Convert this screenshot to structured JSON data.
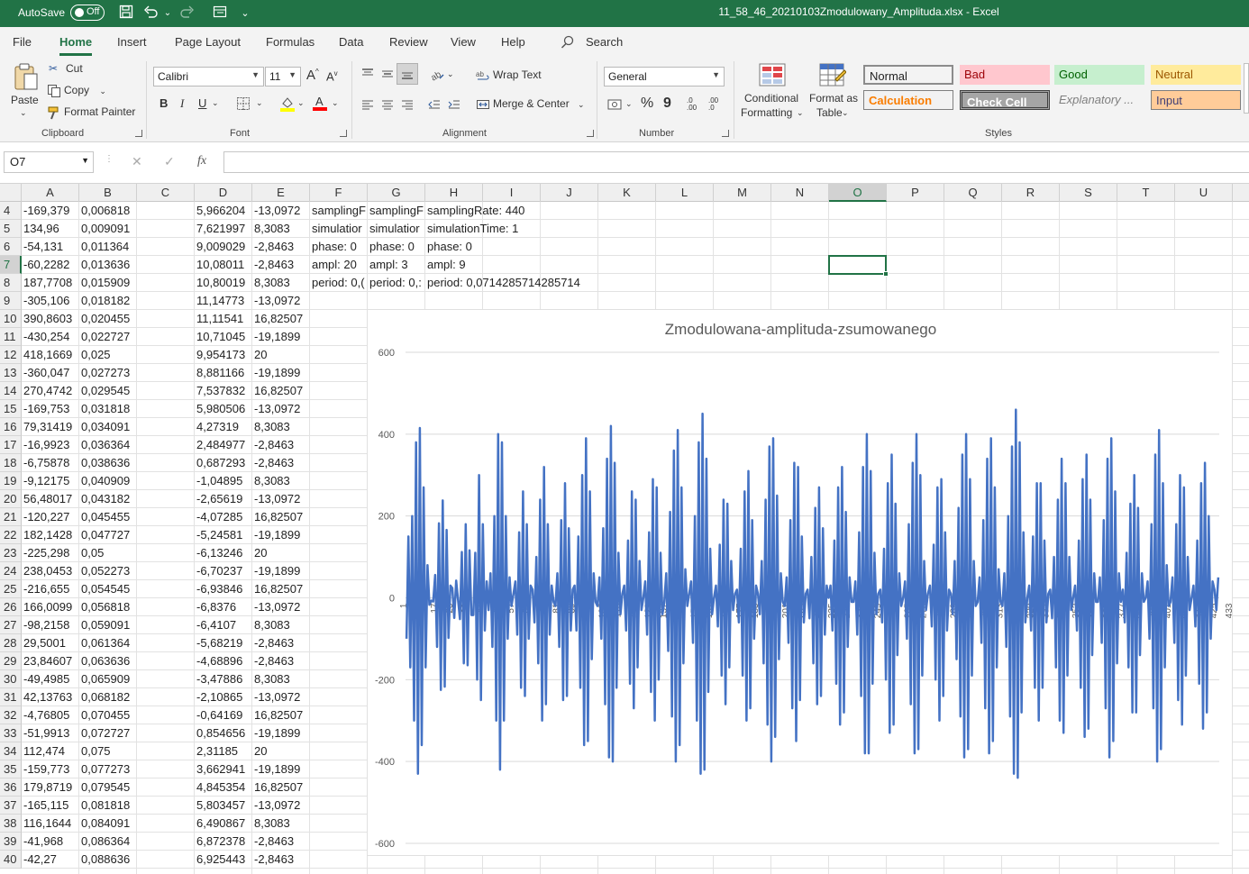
{
  "titlebar": {
    "autosave_label": "AutoSave",
    "autosave_state": "Off",
    "document_title": "11_58_46_20210103Zmodulowany_Amplituda.xlsx  -  Excel"
  },
  "menu": {
    "tabs": [
      "File",
      "Home",
      "Insert",
      "Page Layout",
      "Formulas",
      "Data",
      "Review",
      "View",
      "Help"
    ],
    "active_tab": "Home",
    "search_label": "Search"
  },
  "ribbon": {
    "clipboard": {
      "paste": "Paste",
      "cut": "Cut",
      "copy": "Copy",
      "format_painter": "Format Painter",
      "label": "Clipboard"
    },
    "font": {
      "family": "Calibri",
      "size": "11",
      "bold": "B",
      "italic": "I",
      "underline": "U",
      "label": "Font"
    },
    "alignment": {
      "wrap_text": "Wrap Text",
      "merge_center": "Merge & Center",
      "label": "Alignment"
    },
    "number": {
      "format": "General",
      "percent": "%",
      "comma": "9",
      "increase_decimal": ".00",
      "decrease_decimal": ".0",
      "label": "Number"
    },
    "styles": {
      "conditional_formatting_line1": "Conditional",
      "conditional_formatting_line2": "Formatting",
      "format_table_line1": "Format as",
      "format_table_line2": "Table",
      "cells": [
        {
          "name": "Normal",
          "bg": "#ffffff",
          "fg": "#000000",
          "border": "#8c8c8c"
        },
        {
          "name": "Bad",
          "bg": "#ffc7ce",
          "fg": "#9c0006",
          "border": "#ffc7ce"
        },
        {
          "name": "Good",
          "bg": "#c6efce",
          "fg": "#006100",
          "border": "#c6efce"
        },
        {
          "name": "Neutral",
          "bg": "#ffeb9c",
          "fg": "#9c5700",
          "border": "#ffeb9c"
        },
        {
          "name": "Calculation",
          "bg": "#f2f2f2",
          "fg": "#fa7d00",
          "border": "#7f7f7f"
        },
        {
          "name": "Check Cell",
          "bg": "#a5a5a5",
          "fg": "#ffffff",
          "border": "#3f3f3f"
        },
        {
          "name": "Explanatory ...",
          "bg": "#ffffff",
          "fg": "#7f7f7f",
          "border": "#ffffff"
        },
        {
          "name": "Input",
          "bg": "#ffcc99",
          "fg": "#3f3f76",
          "border": "#7f7f7f"
        }
      ],
      "label": "Styles"
    }
  },
  "formula_bar": {
    "name_box": "O7",
    "cancel": "✕",
    "enter": "✓",
    "fx": "fx",
    "formula": ""
  },
  "sheet": {
    "columns": [
      "A",
      "B",
      "C",
      "D",
      "E",
      "F",
      "G",
      "H",
      "I",
      "J",
      "K",
      "L",
      "M",
      "N",
      "O",
      "P",
      "Q",
      "R",
      "S",
      "T",
      "U"
    ],
    "selected_column": "O",
    "selected_row": "7",
    "rows": [
      {
        "n": "4",
        "A": "-169,379",
        "B": "0,006818",
        "D": "5,966204",
        "E": "-13,0972",
        "F": "samplingF",
        "G": "samplingF",
        "H": "samplingRate: 440"
      },
      {
        "n": "5",
        "A": "134,96",
        "B": "0,009091",
        "D": "7,621997",
        "E": "8,3083",
        "F": "simulatior",
        "G": "simulatior",
        "H": "simulationTime: 1"
      },
      {
        "n": "6",
        "A": "-54,131",
        "B": "0,011364",
        "D": "9,009029",
        "E": "-2,8463",
        "F": "phase: 0",
        "G": "phase: 0",
        "H": "phase: 0"
      },
      {
        "n": "7",
        "A": "-60,2282",
        "B": "0,013636",
        "D": "10,08011",
        "E": "-2,8463",
        "F": "ampl: 20",
        "G": "ampl: 3",
        "H": "ampl: 9"
      },
      {
        "n": "8",
        "A": "187,7708",
        "B": "0,015909",
        "D": "10,80019",
        "E": "8,3083",
        "F": "period: 0,(",
        "G": "period: 0,:",
        "H": "period: 0,0714285714285714"
      },
      {
        "n": "9",
        "A": "-305,106",
        "B": "0,018182",
        "D": "11,14773",
        "E": "-13,0972"
      },
      {
        "n": "10",
        "A": "390,8603",
        "B": "0,020455",
        "D": "11,11541",
        "E": "16,82507"
      },
      {
        "n": "11",
        "A": "-430,254",
        "B": "0,022727",
        "D": "10,71045",
        "E": "-19,1899"
      },
      {
        "n": "12",
        "A": "418,1669",
        "B": "0,025",
        "D": "9,954173",
        "E": "20"
      },
      {
        "n": "13",
        "A": "-360,047",
        "B": "0,027273",
        "D": "8,881166",
        "E": "-19,1899"
      },
      {
        "n": "14",
        "A": "270,4742",
        "B": "0,029545",
        "D": "7,537832",
        "E": "16,82507"
      },
      {
        "n": "15",
        "A": "-169,753",
        "B": "0,031818",
        "D": "5,980506",
        "E": "-13,0972"
      },
      {
        "n": "16",
        "A": "79,31419",
        "B": "0,034091",
        "D": "4,27319",
        "E": "8,3083"
      },
      {
        "n": "17",
        "A": "-16,9923",
        "B": "0,036364",
        "D": "2,484977",
        "E": "-2,8463"
      },
      {
        "n": "18",
        "A": "-6,75878",
        "B": "0,038636",
        "D": "0,687293",
        "E": "-2,8463"
      },
      {
        "n": "19",
        "A": "-9,12175",
        "B": "0,040909",
        "D": "-1,04895",
        "E": "8,3083"
      },
      {
        "n": "20",
        "A": "56,48017",
        "B": "0,043182",
        "D": "-2,65619",
        "E": "-13,0972"
      },
      {
        "n": "21",
        "A": "-120,227",
        "B": "0,045455",
        "D": "-4,07285",
        "E": "16,82507"
      },
      {
        "n": "22",
        "A": "182,1428",
        "B": "0,047727",
        "D": "-5,24581",
        "E": "-19,1899"
      },
      {
        "n": "23",
        "A": "-225,298",
        "B": "0,05",
        "D": "-6,13246",
        "E": "20"
      },
      {
        "n": "24",
        "A": "238,0453",
        "B": "0,052273",
        "D": "-6,70237",
        "E": "-19,1899"
      },
      {
        "n": "25",
        "A": "-216,655",
        "B": "0,054545",
        "D": "-6,93846",
        "E": "16,82507"
      },
      {
        "n": "26",
        "A": "166,0099",
        "B": "0,056818",
        "D": "-6,8376",
        "E": "-13,0972"
      },
      {
        "n": "27",
        "A": "-98,2158",
        "B": "0,059091",
        "D": "-6,4107",
        "E": "8,3083"
      },
      {
        "n": "28",
        "A": "29,5001",
        "B": "0,061364",
        "D": "-5,68219",
        "E": "-2,8463"
      },
      {
        "n": "29",
        "A": "23,84607",
        "B": "0,063636",
        "D": "-4,68896",
        "E": "-2,8463"
      },
      {
        "n": "30",
        "A": "-49,4985",
        "B": "0,065909",
        "D": "-3,47886",
        "E": "8,3083"
      },
      {
        "n": "31",
        "A": "42,13763",
        "B": "0,068182",
        "D": "-2,10865",
        "E": "-13,0972"
      },
      {
        "n": "32",
        "A": "-4,76805",
        "B": "0,070455",
        "D": "-0,64169",
        "E": "16,82507"
      },
      {
        "n": "33",
        "A": "-51,9913",
        "B": "0,072727",
        "D": "0,854656",
        "E": "-19,1899"
      },
      {
        "n": "34",
        "A": "112,474",
        "B": "0,075",
        "D": "2,31185",
        "E": "20"
      },
      {
        "n": "35",
        "A": "-159,773",
        "B": "0,077273",
        "D": "3,662941",
        "E": "-19,1899"
      },
      {
        "n": "36",
        "A": "179,8719",
        "B": "0,079545",
        "D": "4,845354",
        "E": "16,82507"
      },
      {
        "n": "37",
        "A": "-165,115",
        "B": "0,081818",
        "D": "5,803457",
        "E": "-13,0972"
      },
      {
        "n": "38",
        "A": "116,1644",
        "B": "0,084091",
        "D": "6,490867",
        "E": "8,3083"
      },
      {
        "n": "39",
        "A": "-41,968",
        "B": "0,086364",
        "D": "6,872378",
        "E": "-2,8463"
      },
      {
        "n": "40",
        "A": "-42,27",
        "B": "0,088636",
        "D": "6,925443",
        "E": "-2,8463"
      }
    ]
  },
  "chart_data": {
    "type": "line",
    "title": "Zmodulowana-amplituda-zsumowanego",
    "xlabel": "",
    "ylabel": "",
    "ylim": [
      -600,
      600
    ],
    "y_ticks": [
      "600",
      "400",
      "200",
      "0",
      "-200",
      "-400",
      "-600"
    ],
    "x_tick_labels": [
      "1",
      "9",
      "17",
      "25",
      "33",
      "41",
      "49",
      "57",
      "65",
      "73",
      "81",
      "89",
      "97",
      "105",
      "113",
      "121",
      "129",
      "137",
      "145",
      "153",
      "161",
      "169",
      "177",
      "185",
      "193",
      "201",
      "209",
      "217",
      "225",
      "233",
      "241",
      "249",
      "257",
      "265",
      "273",
      "281",
      "289",
      "297",
      "305",
      "313",
      "321",
      "329",
      "337",
      "345",
      "353",
      "361",
      "369",
      "377",
      "385",
      "393",
      "401",
      "409",
      "417",
      "425",
      "433"
    ],
    "grid": true,
    "legend": "none",
    "series_color": "#4472c4",
    "series": [
      {
        "values": [
          -100,
          150,
          -170,
          200,
          -300,
          380,
          -430,
          415,
          -360,
          270,
          -170,
          80,
          -17,
          -7,
          -9,
          56,
          -120,
          182,
          -225,
          238,
          -217,
          166,
          -98,
          30,
          24,
          -49,
          42,
          -5,
          -52,
          112,
          -160,
          180,
          -165,
          116,
          -42,
          -42,
          110,
          -200,
          300,
          -250,
          180,
          -80,
          40,
          -30,
          60,
          -120,
          200,
          -300,
          400,
          -420,
          380,
          -300,
          200,
          -100,
          50,
          -20,
          10,
          40,
          -90,
          160,
          -220,
          260,
          -240,
          180,
          -100,
          30,
          20,
          -60,
          100,
          -160,
          240,
          -300,
          320,
          -260,
          180,
          -90,
          30,
          -10,
          -20,
          60,
          -120,
          190,
          -250,
          280,
          -240,
          170,
          -80,
          20,
          30,
          -80,
          150,
          -220,
          300,
          -360,
          390,
          -350,
          260,
          -150,
          60,
          -10,
          -20,
          50,
          -100,
          170,
          -260,
          340,
          -390,
          420,
          -400,
          330,
          -220,
          110,
          -40,
          10,
          30,
          -80,
          140,
          -210,
          260,
          -270,
          240,
          -170,
          90,
          -30,
          0,
          40,
          -90,
          160,
          -230,
          290,
          -300,
          270,
          -200,
          110,
          -40,
          -10,
          60,
          -130,
          210,
          -290,
          360,
          -400,
          410,
          -360,
          270,
          -160,
          70,
          -20,
          10,
          40,
          -110,
          200,
          -300,
          380,
          -430,
          450,
          -420,
          340,
          -230,
          120,
          -40,
          0,
          30,
          -70,
          130,
          -190,
          240,
          -260,
          230,
          -170,
          90,
          -30,
          10,
          20,
          -60,
          120,
          -190,
          260,
          -300,
          310,
          -270,
          190,
          -100,
          30,
          10,
          -40,
          90,
          -160,
          240,
          -310,
          370,
          -400,
          390,
          -340,
          250,
          -150,
          60,
          -10,
          -20,
          50,
          -110,
          190,
          -270,
          330,
          -350,
          320,
          -250,
          150,
          -60,
          10,
          20,
          -50,
          100,
          -160,
          220,
          -260,
          270,
          -240,
          170,
          -90,
          30,
          0,
          30,
          -80,
          140,
          -210,
          270,
          -310,
          320,
          -280,
          210,
          -120,
          50,
          -10,
          -10,
          40,
          -90,
          160,
          -240,
          320,
          -380,
          400,
          -380,
          310,
          -210,
          110,
          -40,
          10,
          20,
          -60,
          120,
          -200,
          280,
          -330,
          350,
          -310,
          230,
          -140,
          60,
          -20,
          0,
          40,
          -100,
          180,
          -260,
          330,
          -380,
          400,
          -370,
          300,
          -190,
          90,
          -30,
          10,
          30,
          -70,
          130,
          -200,
          270,
          -300,
          290,
          -240,
          160,
          -80,
          20,
          10,
          -40,
          90,
          -150,
          220,
          -290,
          350,
          -390,
          400,
          -370,
          290,
          -190,
          90,
          -20,
          -10,
          50,
          -110,
          190,
          -270,
          340,
          -380,
          390,
          -350,
          270,
          -170,
          70,
          -10,
          -20,
          60,
          -120,
          200,
          -290,
          370,
          -430,
          460,
          -440,
          380,
          -280,
          160,
          -60,
          0,
          30,
          -80,
          150,
          -220,
          280,
          -300,
          280,
          -220,
          140,
          -60,
          10,
          20,
          -50,
          100,
          -170,
          240,
          -300,
          340,
          -330,
          280,
          -190,
          100,
          -30,
          0,
          30,
          -80,
          140,
          -220,
          290,
          -340,
          350,
          -320,
          240,
          -140,
          60,
          -10,
          -10,
          50,
          -110,
          190,
          -270,
          340,
          -390,
          390,
          -350,
          260,
          -160,
          60,
          -10,
          20,
          -60,
          110,
          -170,
          230,
          -280,
          300,
          -280,
          220,
          -140,
          60,
          -10,
          0,
          40,
          -100,
          180,
          -270,
          350,
          -400,
          410,
          -370,
          280,
          -170,
          80,
          -20,
          -10,
          50,
          -110,
          180,
          -250,
          300,
          -310,
          270,
          -190,
          100,
          -30,
          0,
          30,
          -70,
          140,
          -210,
          280,
          -320,
          330,
          -280,
          200,
          -100,
          40,
          20,
          -30,
          50
        ]
      }
    ]
  }
}
